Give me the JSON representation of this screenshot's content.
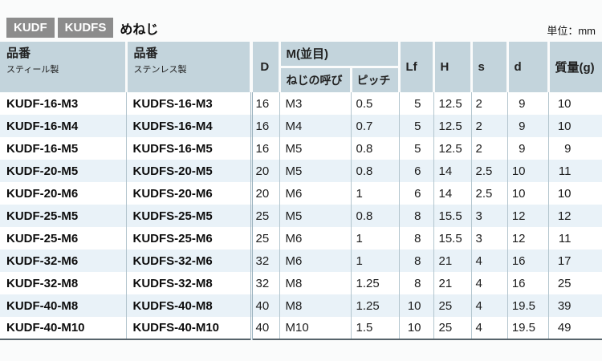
{
  "title": {
    "badges": [
      "KUDF",
      "KUDFS"
    ],
    "label": "めねじ",
    "unit": "単位：mm"
  },
  "table": {
    "headers": {
      "part_no": "品番",
      "steel_sub": "スティール製",
      "stainless_sub": "ステンレス製",
      "D": "D",
      "m_group": "M(並目)",
      "thread": "ねじの呼び",
      "pitch": "ピッチ",
      "Lf": "Lf",
      "H": "H",
      "s": "s",
      "d": "d",
      "mass": "質量(g)"
    },
    "rows": [
      {
        "steel": "KUDF-16-M3",
        "stainless": "KUDFS-16-M3",
        "D": "16",
        "thread": "M3",
        "pitch": "0.5",
        "Lf": "5",
        "H": "12.5",
        "s": "2",
        "d": "9",
        "mass_g": "10"
      },
      {
        "steel": "KUDF-16-M4",
        "stainless": "KUDFS-16-M4",
        "D": "16",
        "thread": "M4",
        "pitch": "0.7",
        "Lf": "5",
        "H": "12.5",
        "s": "2",
        "d": "9",
        "mass_g": "10"
      },
      {
        "steel": "KUDF-16-M5",
        "stainless": "KUDFS-16-M5",
        "D": "16",
        "thread": "M5",
        "pitch": "0.8",
        "Lf": "5",
        "H": "12.5",
        "s": "2",
        "d": "9",
        "mass_g": "9"
      },
      {
        "steel": "KUDF-20-M5",
        "stainless": "KUDFS-20-M5",
        "D": "20",
        "thread": "M5",
        "pitch": "0.8",
        "Lf": "6",
        "H": "14",
        "s": "2.5",
        "d": "10",
        "mass_g": "11"
      },
      {
        "steel": "KUDF-20-M6",
        "stainless": "KUDFS-20-M6",
        "D": "20",
        "thread": "M6",
        "pitch": "1",
        "Lf": "6",
        "H": "14",
        "s": "2.5",
        "d": "10",
        "mass_g": "10"
      },
      {
        "steel": "KUDF-25-M5",
        "stainless": "KUDFS-25-M5",
        "D": "25",
        "thread": "M5",
        "pitch": "0.8",
        "Lf": "8",
        "H": "15.5",
        "s": "3",
        "d": "12",
        "mass_g": "12"
      },
      {
        "steel": "KUDF-25-M6",
        "stainless": "KUDFS-25-M6",
        "D": "25",
        "thread": "M6",
        "pitch": "1",
        "Lf": "8",
        "H": "15.5",
        "s": "3",
        "d": "12",
        "mass_g": "11"
      },
      {
        "steel": "KUDF-32-M6",
        "stainless": "KUDFS-32-M6",
        "D": "32",
        "thread": "M6",
        "pitch": "1",
        "Lf": "8",
        "H": "21",
        "s": "4",
        "d": "16",
        "mass_g": "17"
      },
      {
        "steel": "KUDF-32-M8",
        "stainless": "KUDFS-32-M8",
        "D": "32",
        "thread": "M8",
        "pitch": "1.25",
        "Lf": "8",
        "H": "21",
        "s": "4",
        "d": "16",
        "mass_g": "25"
      },
      {
        "steel": "KUDF-40-M8",
        "stainless": "KUDFS-40-M8",
        "D": "40",
        "thread": "M8",
        "pitch": "1.25",
        "Lf": "10",
        "H": "25",
        "s": "4",
        "d": "19.5",
        "mass_g": "39"
      },
      {
        "steel": "KUDF-40-M10",
        "stainless": "KUDFS-40-M10",
        "D": "40",
        "thread": "M10",
        "pitch": "1.5",
        "Lf": "10",
        "H": "25",
        "s": "4",
        "d": "19.5",
        "mass_g": "49"
      }
    ]
  },
  "colors": {
    "header_bg": "#c3d4dc",
    "row_alt_bg": "#e9f2f8",
    "badge_bg": "#8c8c8c",
    "grid_line": "#b3c5ce",
    "bottom_rule": "#57646c"
  }
}
